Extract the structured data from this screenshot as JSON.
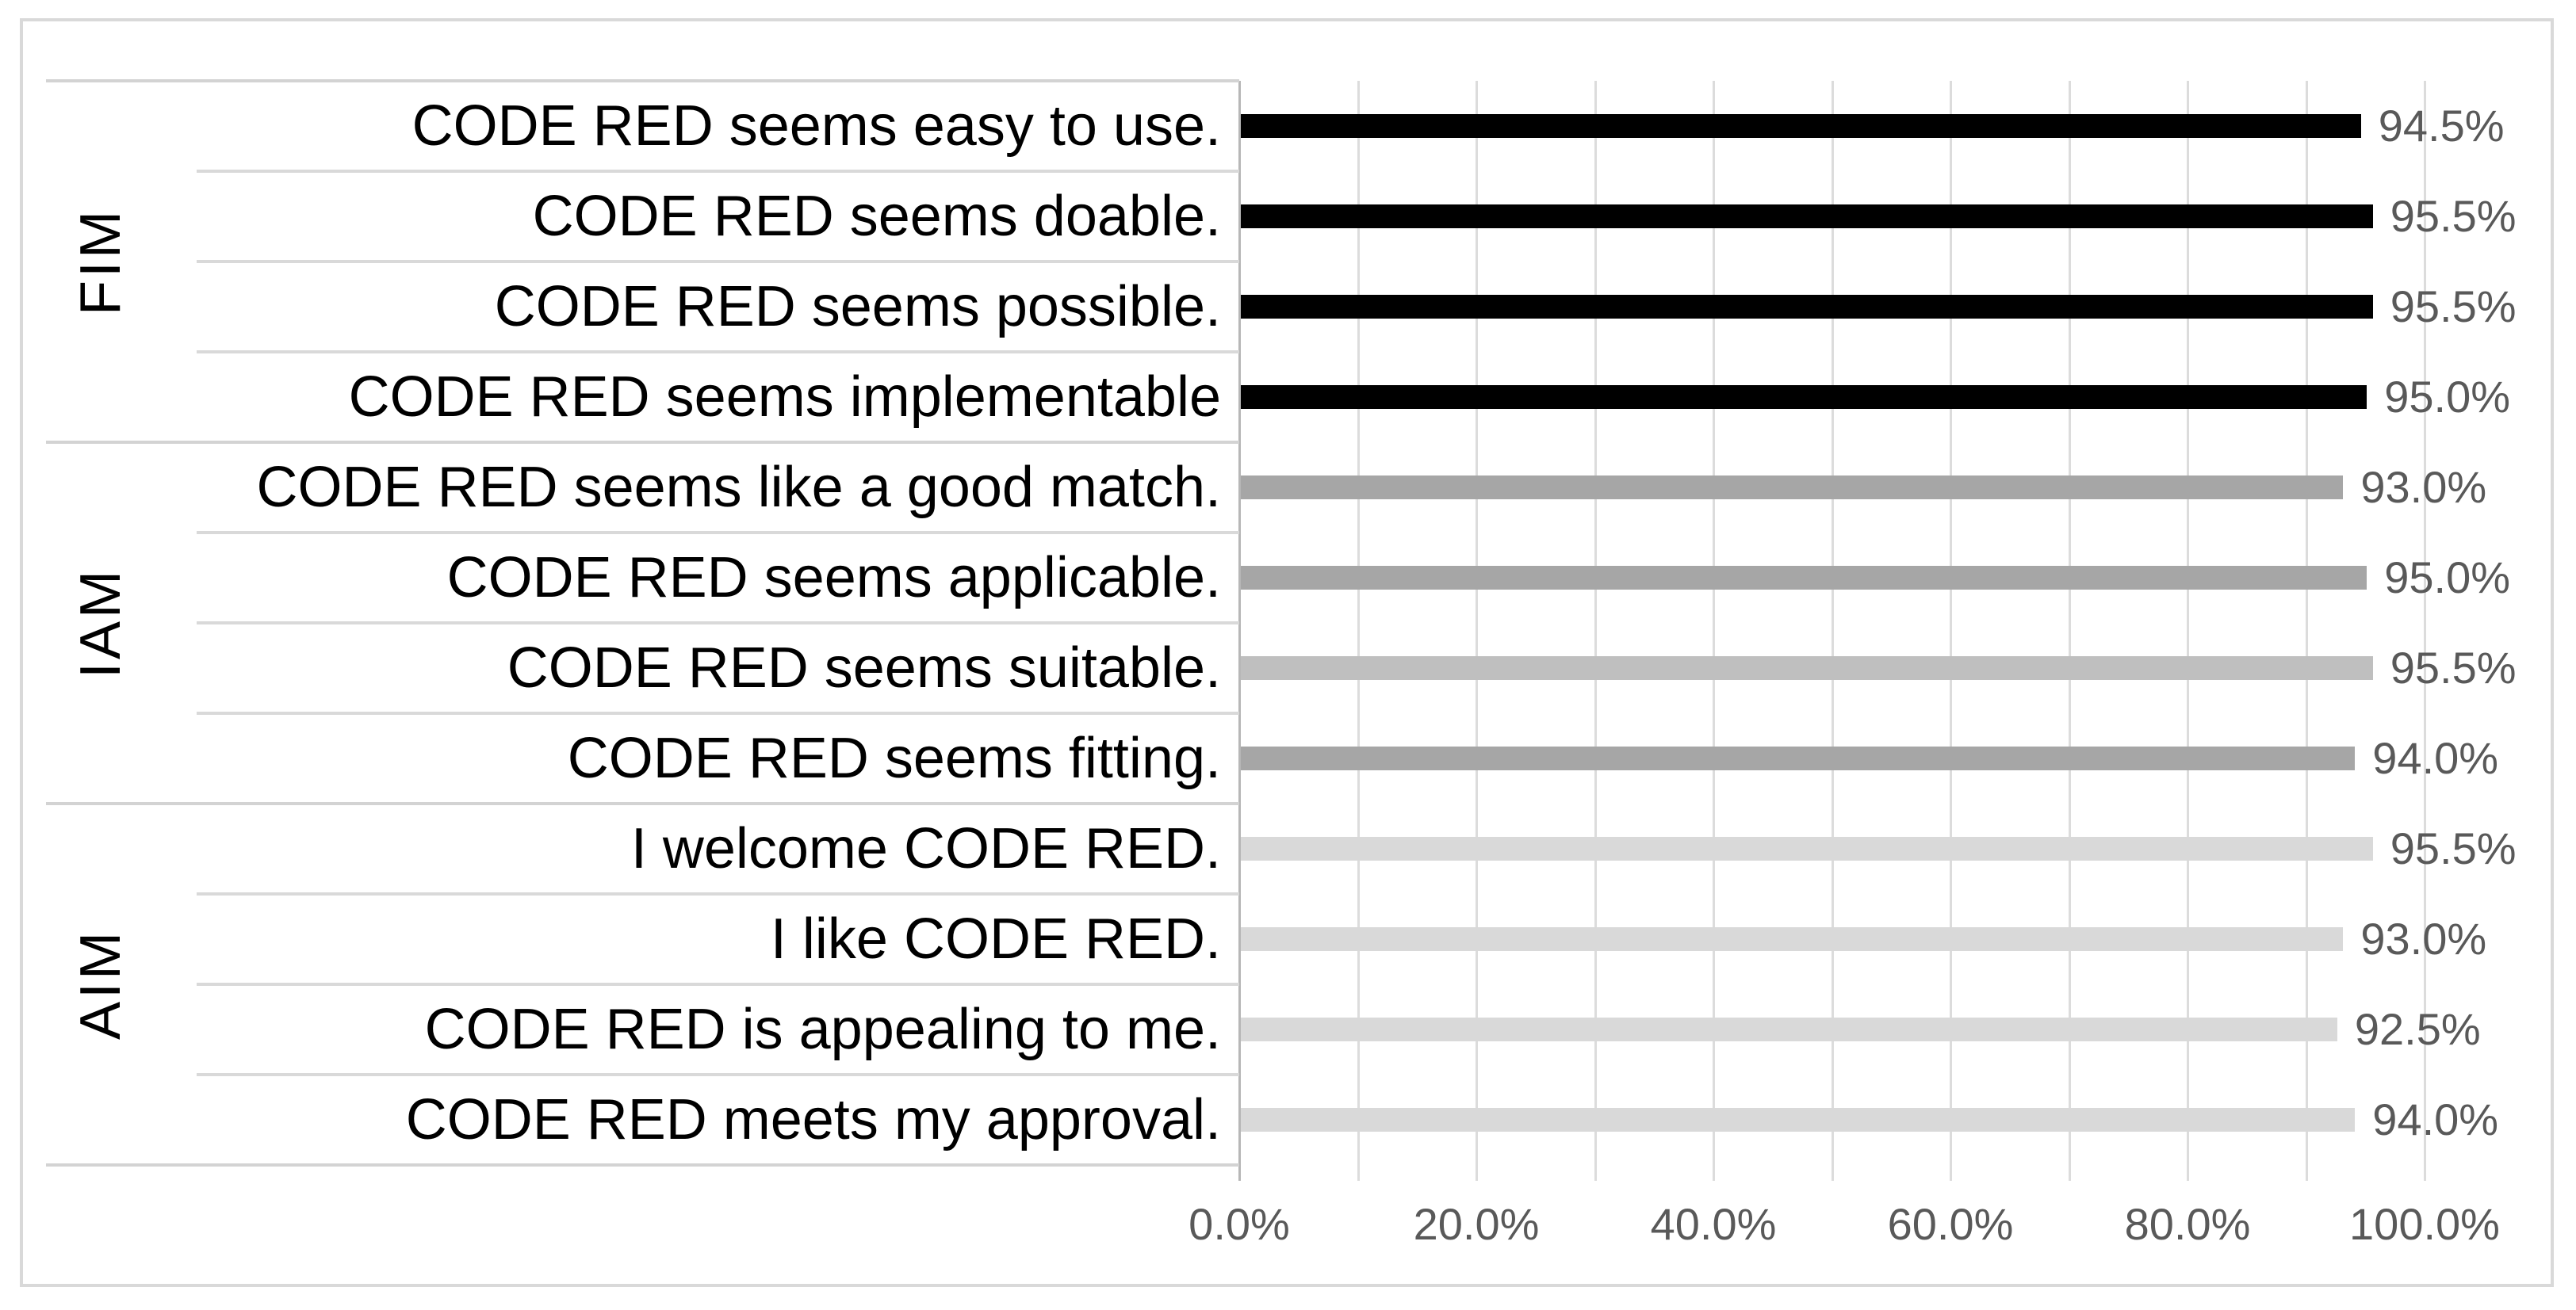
{
  "chart_data": {
    "type": "bar",
    "orientation": "horizontal",
    "title": "",
    "xlabel": "",
    "ylabel": "",
    "xlim": [
      0,
      100
    ],
    "x_tick_labels": [
      "0.0%",
      "20.0%",
      "40.0%",
      "60.0%",
      "80.0%",
      "100.0%"
    ],
    "gridline_step_percent": 10,
    "legend_position": "none",
    "groups": [
      {
        "label": "FIM",
        "color": "#000000",
        "items": [
          {
            "label": "CODE RED seems easy to use.",
            "value": 94.5,
            "value_label": "94.5%"
          },
          {
            "label": "CODE RED seems doable.",
            "value": 95.5,
            "value_label": "95.5%"
          },
          {
            "label": "CODE RED seems possible.",
            "value": 95.5,
            "value_label": "95.5%"
          },
          {
            "label": "CODE RED seems implementable",
            "value": 95.0,
            "value_label": "95.0%"
          }
        ]
      },
      {
        "label": "IAM",
        "color": "#a6a6a6",
        "items": [
          {
            "label": "CODE RED seems like a good match.",
            "value": 93.0,
            "value_label": "93.0%"
          },
          {
            "label": "CODE RED seems applicable.",
            "value": 95.0,
            "value_label": "95.0%"
          },
          {
            "label": "CODE RED seems suitable.",
            "value": 95.5,
            "value_label": "95.5%",
            "color": "#bfbfbf"
          },
          {
            "label": "CODE RED seems fitting.",
            "value": 94.0,
            "value_label": "94.0%"
          }
        ]
      },
      {
        "label": "AIM",
        "color": "#d9d9d9",
        "items": [
          {
            "label": "I welcome CODE RED.",
            "value": 95.5,
            "value_label": "95.5%"
          },
          {
            "label": "I like CODE RED.",
            "value": 93.0,
            "value_label": "93.0%"
          },
          {
            "label": "CODE RED is appealing to me.",
            "value": 92.5,
            "value_label": "92.5%"
          },
          {
            "label": "CODE RED meets my approval.",
            "value": 94.0,
            "value_label": "94.0%"
          }
        ]
      }
    ],
    "colors": {
      "fim_bar": "#000000",
      "iam_bar": "#a6a6a6",
      "iam_bar_light": "#bfbfbf",
      "aim_bar": "#d9d9d9",
      "gridline": "#dcdcdc",
      "zero_axis_line": "#b7b7b7",
      "row_separator": "#d9d9d9",
      "group_separator": "#d3d3d3",
      "chart_border": "#d9d9d9",
      "category_text": "#000000",
      "value_text": "#595959",
      "tick_text": "#595959",
      "background": "#ffffff"
    }
  }
}
